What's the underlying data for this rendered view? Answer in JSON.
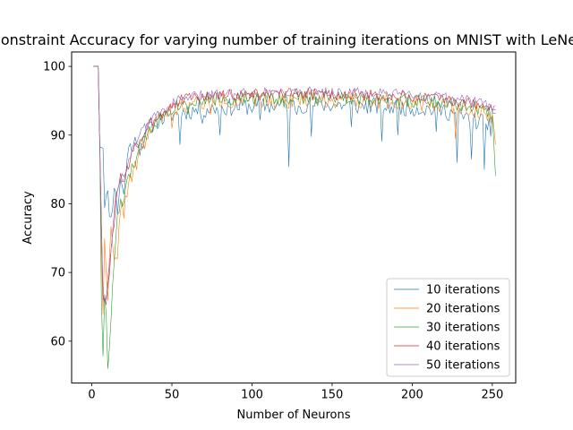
{
  "chart_data": {
    "type": "line",
    "title": "Constraint Accuracy for varying number of training iterations on MNIST with LeNet",
    "xlabel": "Number of Neurons",
    "ylabel": "Accuracy",
    "xlim": [
      -12.6,
      264.6
    ],
    "ylim": [
      53.9,
      102.1
    ],
    "xticks": [
      0,
      50,
      100,
      150,
      200,
      250
    ],
    "yticks": [
      60,
      70,
      80,
      90,
      100
    ],
    "grid": false,
    "legend_position": "lower-right",
    "x": {
      "start": 1,
      "end": 252,
      "step": 1
    },
    "series": [
      {
        "name": "10 iterations",
        "color": "#1f77b4",
        "anchors": [
          [
            1,
            100
          ],
          [
            4,
            100
          ],
          [
            5,
            89
          ],
          [
            7,
            88.5
          ],
          [
            8,
            80.5
          ],
          [
            10,
            81
          ],
          [
            12,
            77.5
          ],
          [
            14,
            83
          ],
          [
            16,
            79
          ],
          [
            18,
            84
          ],
          [
            20,
            81
          ],
          [
            22,
            86.5
          ],
          [
            24,
            89
          ],
          [
            26,
            88
          ],
          [
            28,
            90
          ],
          [
            30,
            88
          ],
          [
            35,
            91
          ],
          [
            40,
            92
          ],
          [
            50,
            93
          ],
          [
            60,
            93.5
          ],
          [
            80,
            94
          ],
          [
            100,
            94.2
          ],
          [
            140,
            94.5
          ],
          [
            180,
            94.2
          ],
          [
            200,
            94
          ],
          [
            220,
            93.6
          ],
          [
            240,
            92
          ],
          [
            252,
            92
          ]
        ],
        "noise": 1.3,
        "seed": 11,
        "spikes": [
          [
            55,
            88.6
          ],
          [
            69,
            91.7
          ],
          [
            80,
            90
          ],
          [
            105,
            92.2
          ],
          [
            123,
            85.4
          ],
          [
            128,
            93
          ],
          [
            137,
            89.8
          ],
          [
            162,
            91.2
          ],
          [
            181,
            89.1
          ],
          [
            191,
            90
          ],
          [
            215,
            90.5
          ],
          [
            228,
            86
          ],
          [
            237,
            86.5
          ],
          [
            245,
            85
          ],
          [
            249,
            89.8
          ]
        ]
      },
      {
        "name": "20 iterations",
        "color": "#ff7f0e",
        "anchors": [
          [
            1,
            100
          ],
          [
            4,
            100
          ],
          [
            5,
            88
          ],
          [
            6,
            74
          ],
          [
            7,
            63
          ],
          [
            8,
            75
          ],
          [
            10,
            67
          ],
          [
            12,
            76
          ],
          [
            14,
            71
          ],
          [
            16,
            72
          ],
          [
            18,
            80
          ],
          [
            20,
            79
          ],
          [
            22,
            82
          ],
          [
            25,
            84
          ],
          [
            30,
            87
          ],
          [
            35,
            90
          ],
          [
            40,
            92
          ],
          [
            50,
            93.5
          ],
          [
            60,
            94.4
          ],
          [
            80,
            95
          ],
          [
            100,
            95
          ],
          [
            140,
            95.2
          ],
          [
            180,
            95
          ],
          [
            200,
            94.8
          ],
          [
            220,
            94.5
          ],
          [
            240,
            93.8
          ],
          [
            252,
            92
          ]
        ],
        "noise": 1.2,
        "seed": 22,
        "spikes": [
          [
            16,
            72
          ],
          [
            30,
            88
          ],
          [
            50,
            91
          ],
          [
            74,
            93
          ],
          [
            227,
            89.5
          ],
          [
            252,
            88.6
          ]
        ]
      },
      {
        "name": "30 iterations",
        "color": "#2ca02c",
        "anchors": [
          [
            1,
            100
          ],
          [
            4,
            100
          ],
          [
            5,
            89
          ],
          [
            6,
            66
          ],
          [
            7,
            58
          ],
          [
            8,
            66
          ],
          [
            9,
            64
          ],
          [
            10,
            56
          ],
          [
            12,
            63
          ],
          [
            14,
            72
          ],
          [
            16,
            78
          ],
          [
            18,
            80
          ],
          [
            20,
            80
          ],
          [
            22,
            83
          ],
          [
            25,
            85
          ],
          [
            30,
            88
          ],
          [
            35,
            90.5
          ],
          [
            40,
            92
          ],
          [
            50,
            94
          ],
          [
            60,
            95
          ],
          [
            80,
            95.3
          ],
          [
            100,
            95.4
          ],
          [
            140,
            95.5
          ],
          [
            180,
            95.3
          ],
          [
            200,
            95
          ],
          [
            220,
            94.7
          ],
          [
            240,
            94
          ],
          [
            250,
            93
          ],
          [
            252,
            85
          ]
        ],
        "noise": 1.0,
        "seed": 33,
        "spikes": [
          [
            10,
            56
          ],
          [
            60,
            93
          ],
          [
            120,
            94
          ],
          [
            200,
            94.2
          ]
        ]
      },
      {
        "name": "40 iterations",
        "color": "#d62728",
        "anchors": [
          [
            1,
            100
          ],
          [
            4,
            100
          ],
          [
            5,
            89
          ],
          [
            7,
            66
          ],
          [
            9,
            66
          ],
          [
            11,
            70
          ],
          [
            13,
            75
          ],
          [
            15,
            80
          ],
          [
            18,
            84
          ],
          [
            20,
            84
          ],
          [
            23,
            85
          ],
          [
            26,
            88
          ],
          [
            30,
            89
          ],
          [
            35,
            91.5
          ],
          [
            40,
            92.5
          ],
          [
            50,
            94.5
          ],
          [
            60,
            95.4
          ],
          [
            80,
            95.8
          ],
          [
            100,
            95.9
          ],
          [
            140,
            96
          ],
          [
            180,
            95.7
          ],
          [
            200,
            95.5
          ],
          [
            220,
            95.2
          ],
          [
            240,
            94.5
          ],
          [
            252,
            93.5
          ]
        ],
        "noise": 0.85,
        "seed": 44,
        "spikes": []
      },
      {
        "name": "50 iterations",
        "color": "#9467bd",
        "anchors": [
          [
            1,
            100
          ],
          [
            4,
            100
          ],
          [
            5,
            89
          ],
          [
            7,
            66
          ],
          [
            9,
            66
          ],
          [
            11,
            72
          ],
          [
            13,
            76
          ],
          [
            15,
            81
          ],
          [
            18,
            84
          ],
          [
            20,
            84.5
          ],
          [
            23,
            86
          ],
          [
            26,
            88.5
          ],
          [
            30,
            90
          ],
          [
            35,
            91.5
          ],
          [
            40,
            93
          ],
          [
            50,
            94.6
          ],
          [
            60,
            95.5
          ],
          [
            80,
            96
          ],
          [
            100,
            96.2
          ],
          [
            140,
            96.3
          ],
          [
            180,
            96
          ],
          [
            200,
            95.8
          ],
          [
            220,
            95.4
          ],
          [
            240,
            94.8
          ],
          [
            252,
            93.8
          ]
        ],
        "noise": 0.8,
        "seed": 55,
        "spikes": []
      }
    ]
  }
}
